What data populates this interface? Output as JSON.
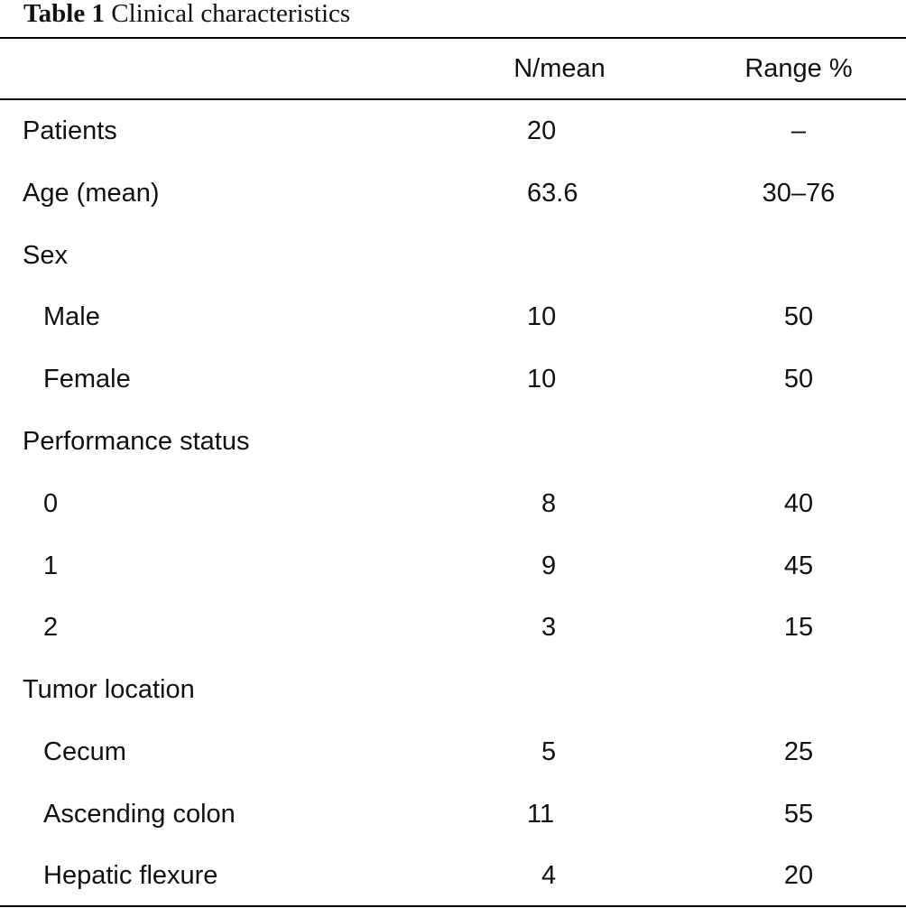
{
  "table": {
    "caption_label": "Table 1",
    "caption_text": "Clinical characteristics",
    "headers": {
      "label": "",
      "n_mean": "N/mean",
      "range_pct": "Range %"
    },
    "rows": [
      {
        "label": "Patients",
        "n": "20",
        "range": "–"
      },
      {
        "label": "Age (mean)",
        "n": "63.6",
        "range": "30–76"
      },
      {
        "label": "Sex",
        "n": "",
        "range": ""
      },
      {
        "label": "Male",
        "n": "10",
        "range": "50"
      },
      {
        "label": "Female",
        "n": "10",
        "range": "50"
      },
      {
        "label": "Performance status",
        "n": "",
        "range": ""
      },
      {
        "label": "0",
        "n": "8",
        "range": "40"
      },
      {
        "label": "1",
        "n": "9",
        "range": "45"
      },
      {
        "label": "2",
        "n": "3",
        "range": "15"
      },
      {
        "label": "Tumor location",
        "n": "",
        "range": ""
      },
      {
        "label": "Cecum",
        "n": "5",
        "range": "25"
      },
      {
        "label": "Ascending colon",
        "n": "11",
        "range": "55"
      },
      {
        "label": "Hepatic flexure",
        "n": "4",
        "range": "20"
      }
    ]
  }
}
